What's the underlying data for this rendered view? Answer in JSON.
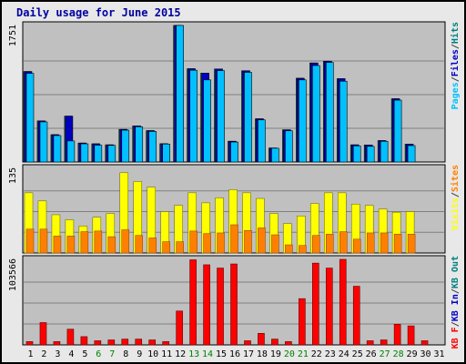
{
  "title": "Daily usage for June 2015",
  "chart_data": [
    {
      "type": "bar",
      "title": "Daily usage for June 2015",
      "ymax_label": "1751",
      "ylim": [
        0,
        1751
      ],
      "x": [
        "1",
        "2",
        "3",
        "4",
        "5",
        "6",
        "7",
        "8",
        "9",
        "10",
        "11",
        "12",
        "13",
        "14",
        "15",
        "16",
        "17",
        "18",
        "19",
        "20",
        "21",
        "22",
        "23",
        "24",
        "25",
        "26",
        "27",
        "28",
        "29",
        "30",
        "31"
      ],
      "weekend_days": [
        "6",
        "7",
        "13",
        "14",
        "20",
        "21",
        "27",
        "28"
      ],
      "legend": [
        {
          "label": "Pages",
          "color": "#00c0ff"
        },
        {
          "label": "/",
          "color": "#404040"
        },
        {
          "label": "Files",
          "color": "#0000c0"
        },
        {
          "label": "/",
          "color": "#404040"
        },
        {
          "label": "Hits",
          "color": "#008080"
        }
      ],
      "series": [
        {
          "name": "Hits",
          "color": "#008080",
          "values": [
            1160,
            527,
            350,
            588,
            243,
            233,
            220,
            418,
            463,
            402,
            234,
            1766,
            1196,
            1139,
            1193,
            266,
            1170,
            554,
            179,
            412,
            1074,
            1270,
            1293,
            1068,
            220,
            218,
            274,
            811,
            229,
            0,
            0
          ]
        },
        {
          "name": "Files",
          "color": "#0000c0",
          "values": [
            1160,
            527,
            350,
            588,
            243,
            233,
            220,
            418,
            463,
            402,
            234,
            1766,
            1196,
            1139,
            1193,
            266,
            1170,
            554,
            179,
            412,
            1074,
            1270,
            1293,
            1068,
            220,
            218,
            274,
            811,
            229,
            0,
            0
          ]
        },
        {
          "name": "Pages",
          "color": "#00c0ff",
          "values": [
            1137,
            514,
            339,
            270,
            233,
            216,
            213,
            408,
            452,
            392,
            230,
            1751,
            1177,
            1053,
            1172,
            256,
            1150,
            540,
            176,
            400,
            1053,
            1237,
            1277,
            1036,
            207,
            200,
            265,
            793,
            210,
            0,
            0
          ]
        }
      ]
    },
    {
      "type": "bar",
      "ymax_label": "135",
      "ylim": [
        0,
        135
      ],
      "x": [
        "1",
        "2",
        "3",
        "4",
        "5",
        "6",
        "7",
        "8",
        "9",
        "10",
        "11",
        "12",
        "13",
        "14",
        "15",
        "16",
        "17",
        "18",
        "19",
        "20",
        "21",
        "22",
        "23",
        "24",
        "25",
        "26",
        "27",
        "28",
        "29",
        "30",
        "31"
      ],
      "legend": [
        {
          "label": "Visits",
          "color": "#ffff00"
        },
        {
          "label": "/",
          "color": "#404040"
        },
        {
          "label": "Sites",
          "color": "#ff8000"
        }
      ],
      "series": [
        {
          "name": "Visits",
          "color": "#ffff00",
          "values": [
            96,
            83,
            61,
            53,
            43,
            57,
            63,
            128,
            114,
            105,
            66,
            76,
            96,
            80,
            88,
            101,
            96,
            87,
            63,
            47,
            59,
            79,
            96,
            96,
            78,
            76,
            70,
            65,
            66,
            0,
            0
          ]
        },
        {
          "name": "Sites",
          "color": "#ff8000",
          "values": [
            38,
            38,
            27,
            27,
            34,
            35,
            26,
            37,
            28,
            24,
            18,
            18,
            35,
            31,
            32,
            45,
            36,
            40,
            29,
            13,
            12,
            28,
            30,
            34,
            22,
            32,
            32,
            30,
            30,
            0,
            0
          ]
        }
      ]
    },
    {
      "type": "bar",
      "ymax_label": "103566",
      "ylim": [
        0,
        103566
      ],
      "x": [
        "1",
        "2",
        "3",
        "4",
        "5",
        "6",
        "7",
        "8",
        "9",
        "10",
        "11",
        "12",
        "13",
        "14",
        "15",
        "16",
        "17",
        "18",
        "19",
        "20",
        "21",
        "22",
        "23",
        "24",
        "25",
        "26",
        "27",
        "28",
        "29",
        "30",
        "31"
      ],
      "legend": [
        {
          "label": "KB F",
          "color": "#ff0000"
        },
        {
          "label": "/",
          "color": "#404040"
        },
        {
          "label": "KB In",
          "color": "#0000c0"
        },
        {
          "label": "/",
          "color": "#404040"
        },
        {
          "label": "KB Out",
          "color": "#008080"
        }
      ],
      "series": [
        {
          "name": "KB F",
          "color": "#ff0000",
          "values": [
            4000,
            27000,
            4000,
            19000,
            10000,
            5000,
            6000,
            7000,
            7000,
            6000,
            4000,
            41000,
            103000,
            97000,
            93000,
            98000,
            5000,
            14000,
            7000,
            4000,
            56000,
            99000,
            93000,
            103566,
            71000,
            5000,
            6000,
            25000,
            23000,
            5000,
            0
          ]
        }
      ]
    }
  ]
}
